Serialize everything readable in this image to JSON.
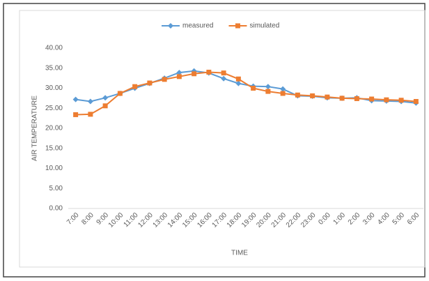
{
  "chart_data": {
    "type": "line",
    "x_label": "TIME",
    "y_label": "AIR TEMPERATURE",
    "categories": [
      "7:00",
      "8:00",
      "9:00",
      "10:00",
      "11:00",
      "12:00",
      "13:00",
      "14:00",
      "15:00",
      "16:00",
      "17:00",
      "18:00",
      "19:00",
      "20:00",
      "21:00",
      "22:00",
      "23:00",
      "0:00",
      "1:00",
      "2:00",
      "3:00",
      "4:00",
      "5:00",
      "6:00"
    ],
    "series": [
      {
        "name": "measured",
        "color": "#5b9bd5",
        "marker": "diamond",
        "values": [
          27.2,
          26.7,
          27.6,
          28.7,
          30.0,
          31.2,
          32.5,
          33.9,
          34.3,
          33.8,
          32.4,
          31.2,
          30.5,
          30.4,
          29.8,
          28.1,
          28.0,
          27.6,
          27.5,
          27.6,
          26.9,
          26.8,
          26.7,
          26.3
        ]
      },
      {
        "name": "simulated",
        "color": "#ed7d31",
        "marker": "square",
        "values": [
          23.4,
          23.5,
          25.6,
          28.7,
          30.4,
          31.3,
          32.2,
          32.9,
          33.6,
          34.0,
          33.8,
          32.3,
          30.0,
          29.2,
          28.7,
          28.3,
          28.1,
          27.8,
          27.5,
          27.4,
          27.3,
          27.1,
          27.0,
          26.7
        ]
      }
    ],
    "ylim": [
      0,
      40
    ],
    "yticks": [
      {
        "value": 0,
        "label": "0.00"
      },
      {
        "value": 5,
        "label": "5.00"
      },
      {
        "value": 10,
        "label": "10.00"
      },
      {
        "value": 15,
        "label": "15.00"
      },
      {
        "value": 20,
        "label": "20.00"
      },
      {
        "value": 25,
        "label": "25.00"
      },
      {
        "value": 30,
        "label": "30.00"
      },
      {
        "value": 35,
        "label": "35.00"
      },
      {
        "value": 40,
        "label": "40.00"
      }
    ],
    "legend": "top"
  }
}
